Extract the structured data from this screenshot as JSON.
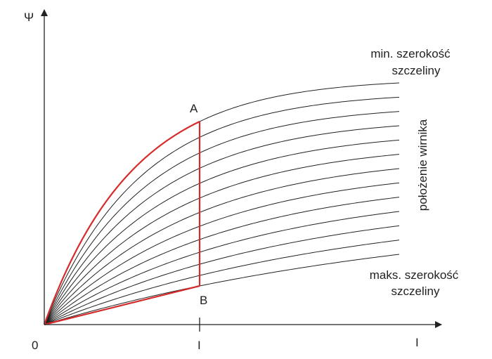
{
  "diagram": {
    "y_axis_label": "Ψ",
    "x_axis_label": "I",
    "origin_label": "0",
    "x_tick_label": "I",
    "point_a_label": "A",
    "point_b_label": "B",
    "top_label_line1": "min. szerokość",
    "top_label_line2": "szczeliny",
    "bottom_label_line1": "maks. szerokość",
    "bottom_label_line2": "szczeliny",
    "side_label": "położenie wirnika",
    "curve_count": 13,
    "colors": {
      "curves": "#222222",
      "axes": "#222222",
      "highlight": "#d62b2b"
    }
  }
}
